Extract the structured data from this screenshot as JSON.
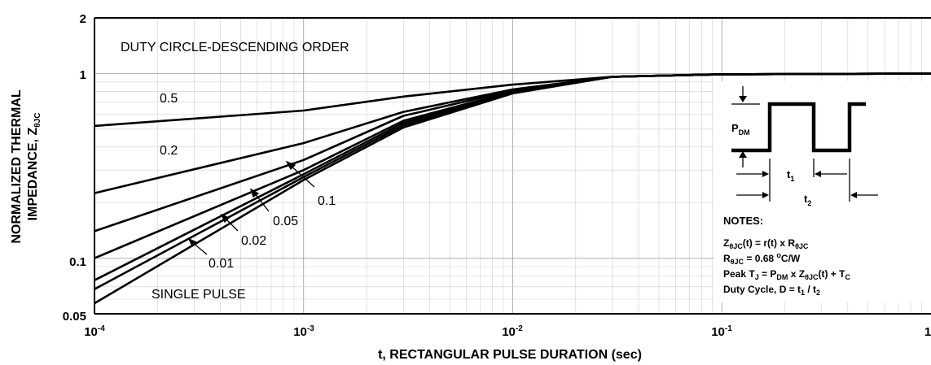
{
  "chart_data": {
    "type": "line",
    "xscale": "log",
    "yscale": "log",
    "xlim": [
      0.0001,
      1
    ],
    "ylim": [
      0.05,
      2
    ],
    "xlabel": "t, RECTANGULAR PULSE DURATION (sec)",
    "ylabel_line1": "NORMALIZED THERMAL",
    "ylabel_line2_main": "IMPEDANCE, Z",
    "ylabel_line2_sub": "θJC",
    "x_ticks": [
      {
        "base": "10",
        "exp": "-4"
      },
      {
        "base": "10",
        "exp": "-3"
      },
      {
        "base": "10",
        "exp": "-2"
      },
      {
        "base": "10",
        "exp": "-1"
      },
      {
        "base": "1",
        "exp": ""
      }
    ],
    "y_ticks": [
      "2",
      "1",
      "0.1",
      "0.05"
    ],
    "grid": true,
    "legend_title": "DUTY CIRCLE-DESCENDING ORDER",
    "series": [
      {
        "label": "0.5",
        "x": [
          0.0001,
          0.001,
          0.003,
          0.01,
          0.03,
          0.1,
          1
        ],
        "y": [
          0.52,
          0.63,
          0.75,
          0.87,
          0.96,
          0.99,
          1.0
        ]
      },
      {
        "label": "0.2",
        "x": [
          0.0001,
          0.001,
          0.003,
          0.01,
          0.03,
          0.1,
          1
        ],
        "y": [
          0.225,
          0.42,
          0.62,
          0.82,
          0.96,
          0.99,
          1.0
        ]
      },
      {
        "label": "0.1",
        "x": [
          0.0001,
          0.001,
          0.003,
          0.01,
          0.03,
          0.1,
          1
        ],
        "y": [
          0.14,
          0.34,
          0.59,
          0.81,
          0.96,
          0.99,
          1.0
        ]
      },
      {
        "label": "0.05",
        "x": [
          0.0001,
          0.001,
          0.003,
          0.01,
          0.03,
          0.1,
          1
        ],
        "y": [
          0.1,
          0.3,
          0.555,
          0.8,
          0.96,
          0.99,
          1.0
        ]
      },
      {
        "label": "0.02",
        "x": [
          0.0001,
          0.001,
          0.003,
          0.01,
          0.03,
          0.1,
          1
        ],
        "y": [
          0.076,
          0.285,
          0.54,
          0.79,
          0.96,
          0.99,
          1.0
        ]
      },
      {
        "label": "0.01",
        "x": [
          0.0001,
          0.001,
          0.003,
          0.01,
          0.03,
          0.1,
          1
        ],
        "y": [
          0.068,
          0.275,
          0.525,
          0.785,
          0.96,
          0.99,
          1.0
        ]
      },
      {
        "label": "SINGLE PULSE",
        "x": [
          0.0001,
          0.001,
          0.003,
          0.01,
          0.03,
          0.1,
          1
        ],
        "y": [
          0.057,
          0.265,
          0.51,
          0.78,
          0.96,
          0.99,
          1.0
        ]
      }
    ]
  },
  "inset": {
    "pdm_main": "P",
    "pdm_sub": "DM",
    "t1_main": "t",
    "t1_sub": "1",
    "t2_main": "t",
    "t2_sub": "2"
  },
  "notes": {
    "title": "NOTES:",
    "l1_a": "Z",
    "l1_b": "θJC",
    "l1_c": "(t) = r(t) x R",
    "l1_d": "θJC",
    "l2_a": "R",
    "l2_b": "θJC",
    "l2_c": " = 0.68 ",
    "l2_d": "o",
    "l2_e": "C/W",
    "l3_a": "Peak T",
    "l3_b": "J",
    "l3_c": " = P",
    "l3_d": "DM",
    "l3_e": " x Z",
    "l3_f": "θJC",
    "l3_g": "(t) + T",
    "l3_h": "C",
    "l4": "Duty Cycle, D = t1 / t2",
    "l4_a": "Duty Cycle, D = t",
    "l4_b": "1",
    "l4_c": " / t",
    "l4_d": "2"
  }
}
